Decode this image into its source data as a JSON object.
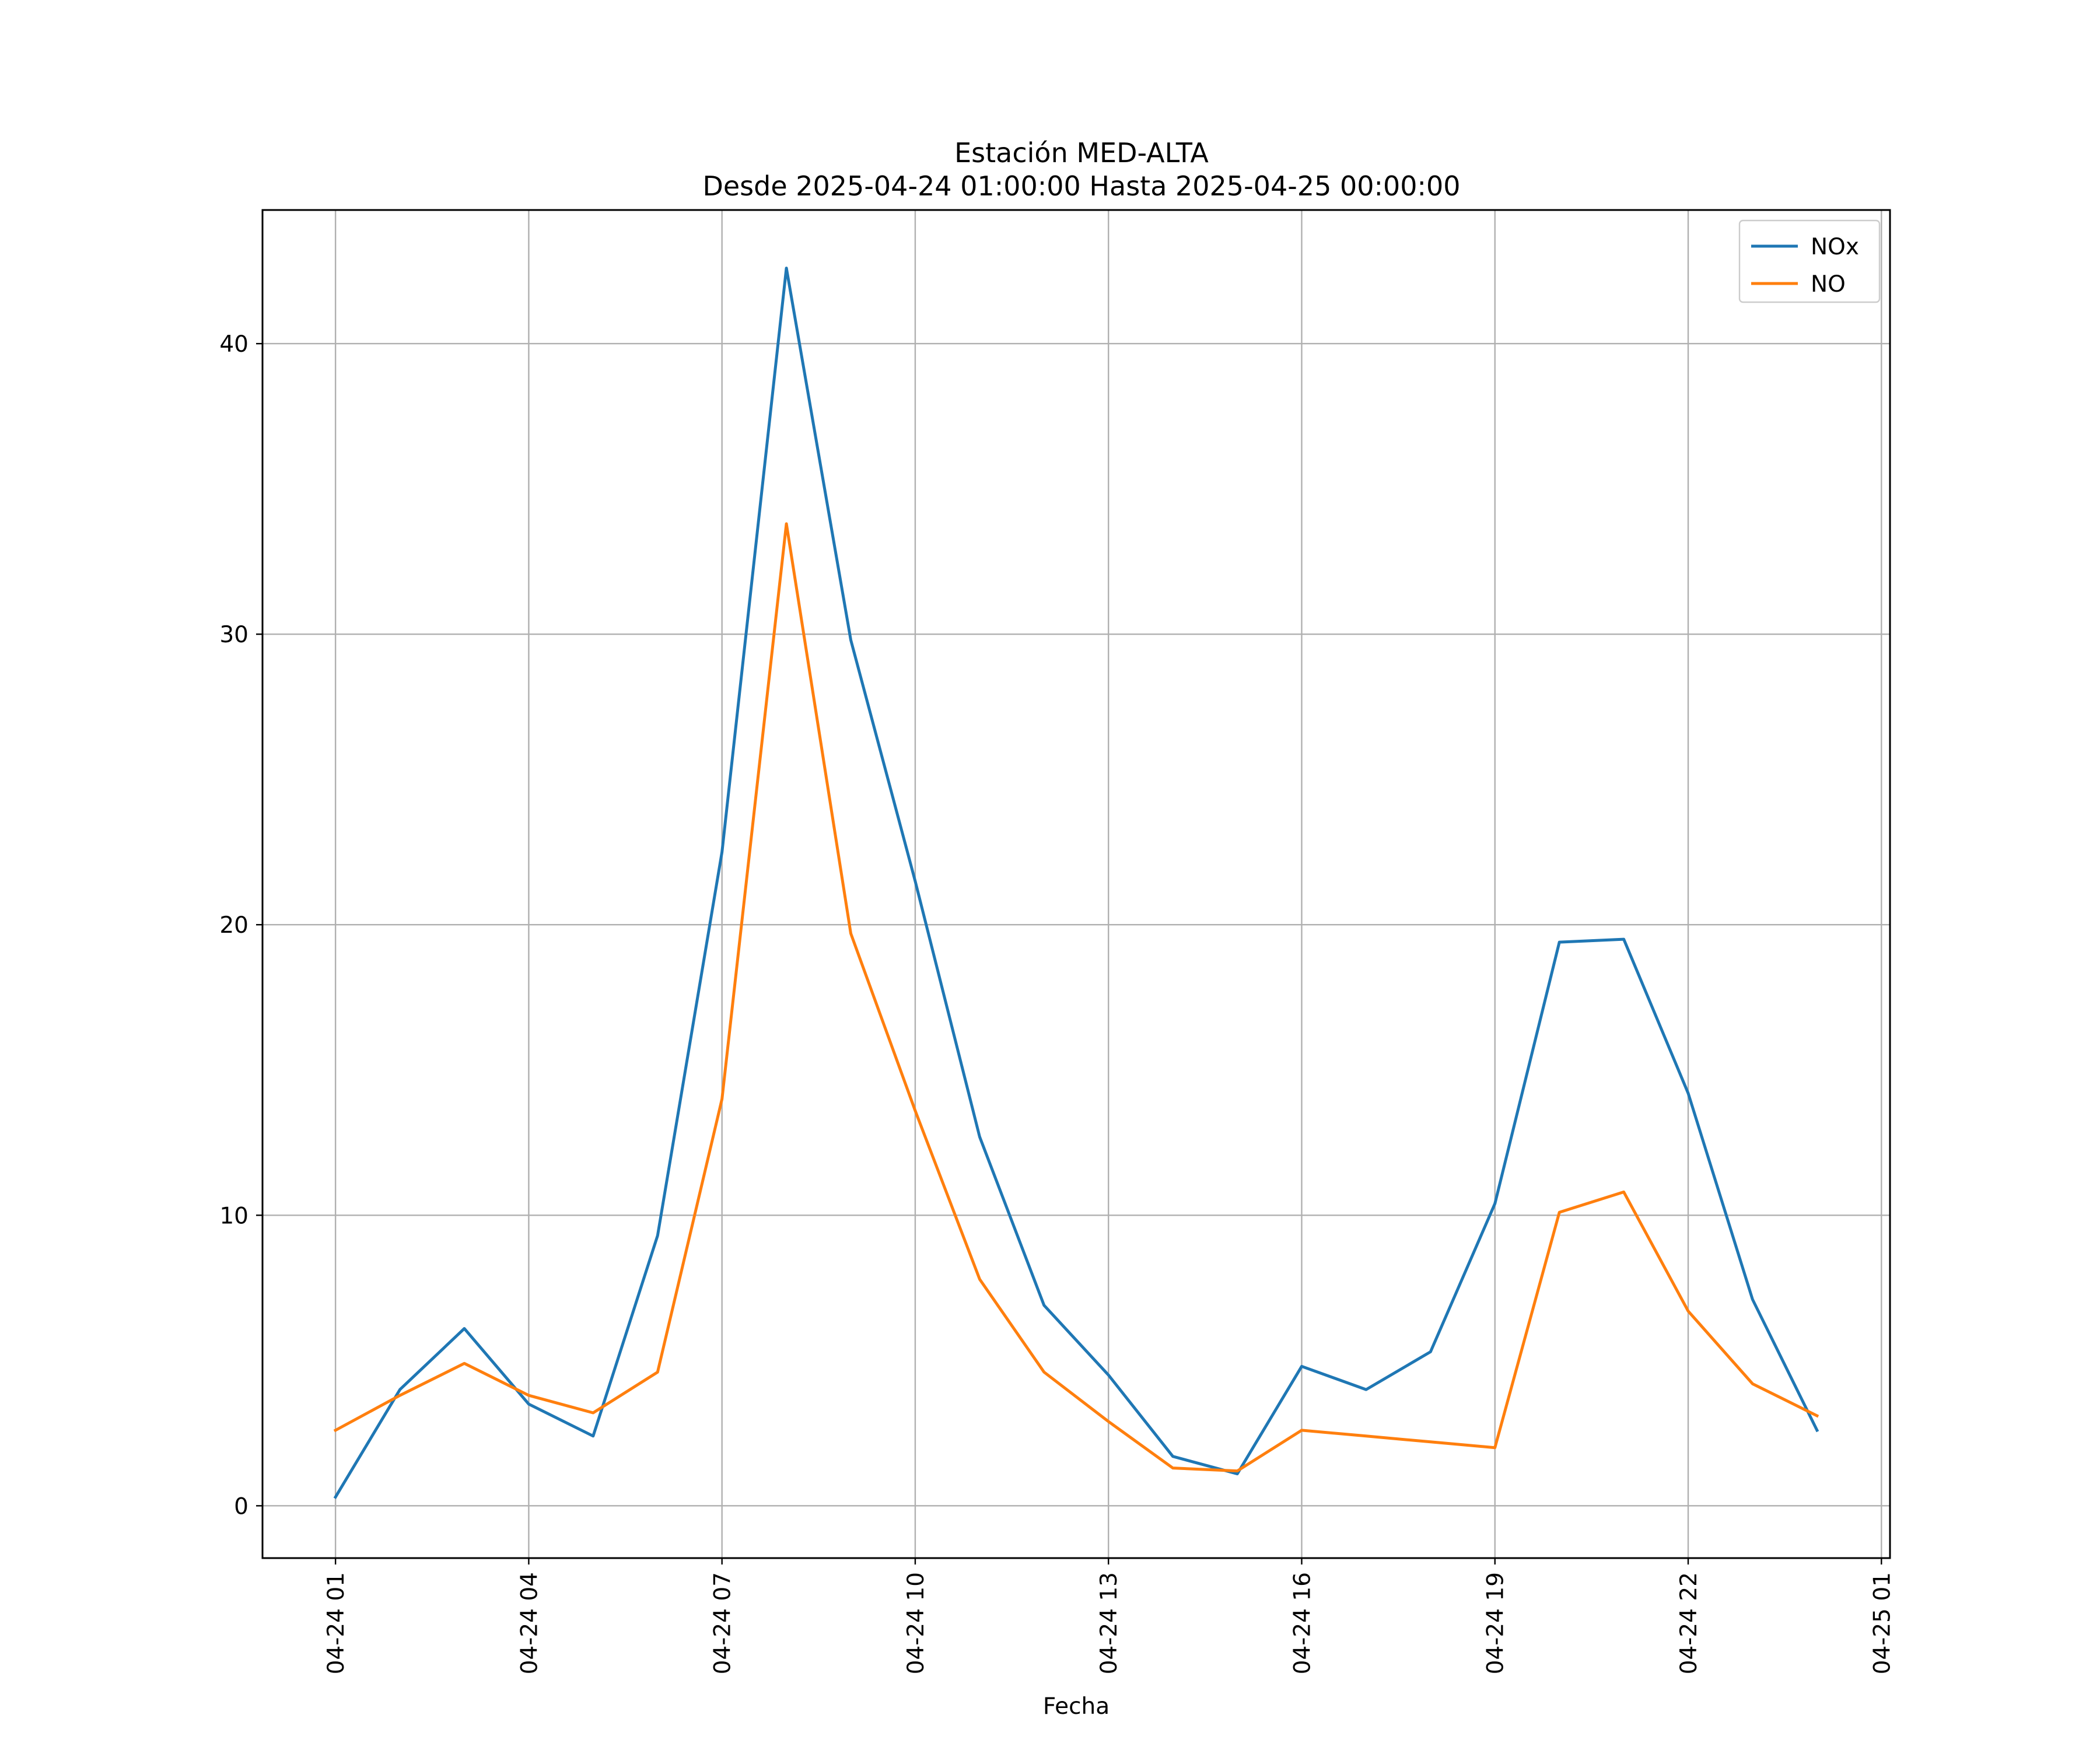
{
  "chart_data": {
    "type": "line",
    "title": "Estación MED-ALTA",
    "subtitle": "Desde 2025-04-24 01:00:00 Hasta 2025-04-25 00:00:00",
    "xlabel": "Fecha",
    "ylabel": "",
    "x": [
      "2025-04-24 01:00",
      "2025-04-24 02:00",
      "2025-04-24 03:00",
      "2025-04-24 04:00",
      "2025-04-24 05:00",
      "2025-04-24 06:00",
      "2025-04-24 07:00",
      "2025-04-24 08:00",
      "2025-04-24 09:00",
      "2025-04-24 10:00",
      "2025-04-24 11:00",
      "2025-04-24 12:00",
      "2025-04-24 13:00",
      "2025-04-24 14:00",
      "2025-04-24 15:00",
      "2025-04-24 16:00",
      "2025-04-24 17:00",
      "2025-04-24 18:00",
      "2025-04-24 19:00",
      "2025-04-24 20:00",
      "2025-04-24 21:00",
      "2025-04-24 22:00",
      "2025-04-24 23:00",
      "2025-04-25 00:00"
    ],
    "x_ticks": [
      "04-24 01",
      "04-24 04",
      "04-24 07",
      "04-24 10",
      "04-24 13",
      "04-24 16",
      "04-24 19",
      "04-24 22",
      "04-25 01"
    ],
    "xlim": [
      "2025-04-23 23:52",
      "2025-04-25 01:08"
    ],
    "y_ticks": [
      0,
      10,
      20,
      30,
      40
    ],
    "ylim": [
      -1.8,
      44.6
    ],
    "grid": true,
    "legend_position": "top-right",
    "series": [
      {
        "name": "NOx",
        "color": "#1f77b4",
        "values": [
          0.3,
          4.0,
          6.1,
          3.5,
          2.4,
          9.3,
          22.5,
          42.6,
          29.8,
          21.5,
          12.7,
          6.9,
          4.5,
          1.7,
          1.1,
          4.8,
          4.0,
          5.3,
          10.4,
          19.4,
          19.5,
          14.2,
          7.1,
          2.6
        ]
      },
      {
        "name": "NO",
        "color": "#ff7f0e",
        "values": [
          2.6,
          3.8,
          4.9,
          3.8,
          3.2,
          4.6,
          14.0,
          33.8,
          19.7,
          13.6,
          7.8,
          4.6,
          2.9,
          1.3,
          1.2,
          2.6,
          2.4,
          2.2,
          2.0,
          10.1,
          10.8,
          6.7,
          4.2,
          3.1
        ]
      }
    ]
  }
}
